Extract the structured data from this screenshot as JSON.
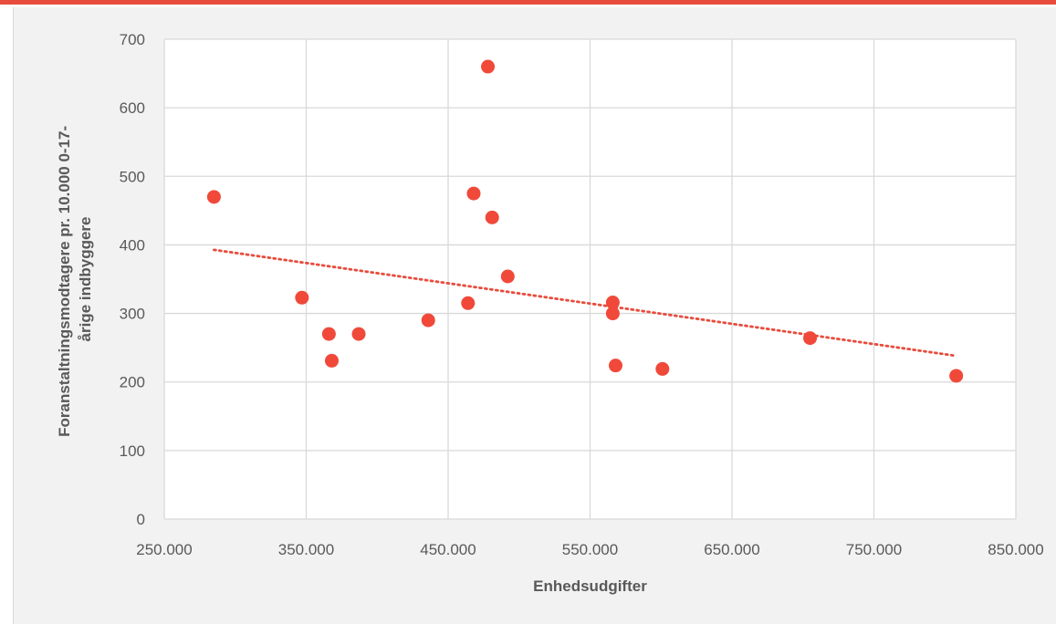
{
  "colors": {
    "accent": "#e84c3d",
    "point": "#f0493a",
    "trendline": "#e84c3d",
    "gridline": "#d9d9d9",
    "plot_background": "#ffffff",
    "chart_background": "#f2f2f2",
    "text": "#595959"
  },
  "chart_data": {
    "type": "scatter",
    "xlabel": "Enhedsudgifter",
    "ylabel_lines": [
      "Foranstaltningsmodtagere  pr. 10.000 0-17-",
      "årige indbyggere"
    ],
    "xlim": [
      250000,
      850000
    ],
    "ylim": [
      0,
      700
    ],
    "x_ticks": [
      250000,
      350000,
      450000,
      550000,
      650000,
      750000,
      850000
    ],
    "x_tick_labels": [
      "250.000",
      "350.000",
      "450.000",
      "550.000",
      "650.000",
      "750.000",
      "850.000"
    ],
    "y_ticks": [
      0,
      100,
      200,
      300,
      400,
      500,
      600,
      700
    ],
    "y_tick_labels": [
      "0",
      "100",
      "200",
      "300",
      "400",
      "500",
      "600",
      "700"
    ],
    "grid": true,
    "legend": "none",
    "points": [
      {
        "x": 285000,
        "y": 470
      },
      {
        "x": 347000,
        "y": 323
      },
      {
        "x": 366000,
        "y": 270
      },
      {
        "x": 368000,
        "y": 231
      },
      {
        "x": 387000,
        "y": 270
      },
      {
        "x": 436000,
        "y": 290
      },
      {
        "x": 464000,
        "y": 315
      },
      {
        "x": 468000,
        "y": 475
      },
      {
        "x": 478000,
        "y": 660
      },
      {
        "x": 481000,
        "y": 440
      },
      {
        "x": 492000,
        "y": 354
      },
      {
        "x": 566000,
        "y": 316
      },
      {
        "x": 566000,
        "y": 300
      },
      {
        "x": 568000,
        "y": 224
      },
      {
        "x": 601000,
        "y": 219
      },
      {
        "x": 705000,
        "y": 264
      },
      {
        "x": 808000,
        "y": 209
      }
    ],
    "trendline": {
      "type": "linear",
      "style": "dotted",
      "x_start": 285000,
      "x_end": 808000
    }
  }
}
